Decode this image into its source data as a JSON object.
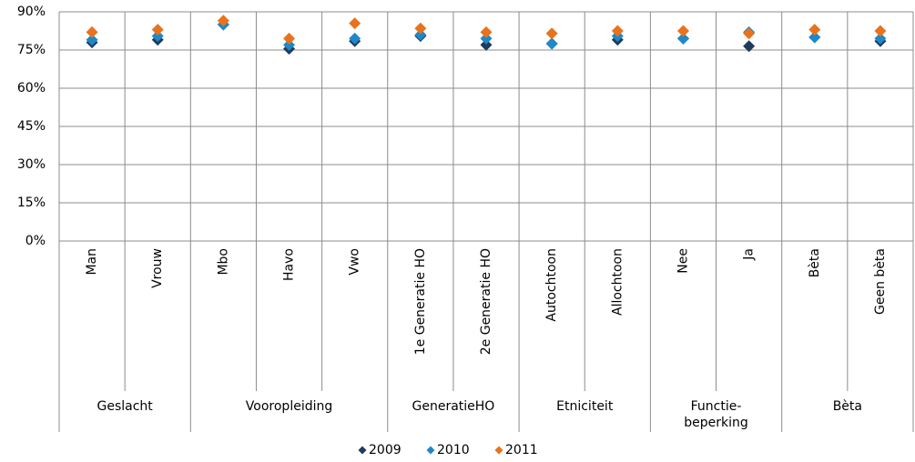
{
  "chart_data": {
    "type": "scatter",
    "groups": [
      {
        "name": "Geslacht",
        "categories": [
          "Man",
          "Vrouw"
        ]
      },
      {
        "name": "Vooropleiding",
        "categories": [
          "Mbo",
          "Havo",
          "Vwo"
        ]
      },
      {
        "name": "GeneratieHO",
        "categories": [
          "1e Generatie HO",
          "2e Generatie HO"
        ]
      },
      {
        "name": "Etniciteit",
        "categories": [
          "Autochtoon",
          "Allochtoon"
        ]
      },
      {
        "name": "Functie-\nbeperking",
        "categories": [
          "Nee",
          "Ja"
        ]
      },
      {
        "name": "Bèta",
        "categories": [
          "Bèta",
          "Geen bèta"
        ]
      }
    ],
    "series": [
      {
        "name": "2009",
        "color": "#1f3b5c",
        "values": [
          78,
          79,
          85,
          75.5,
          78.5,
          80.5,
          77,
          77.5,
          79,
          79.5,
          76.5,
          80,
          78.5
        ]
      },
      {
        "name": "2010",
        "color": "#1e88c9",
        "values": [
          79,
          80.5,
          85,
          77,
          79.5,
          81,
          79.5,
          77.5,
          80.5,
          79.5,
          82,
          80,
          79.5
        ]
      },
      {
        "name": "2011",
        "color": "#e8731c",
        "values": [
          82,
          83,
          86.5,
          79.5,
          85.5,
          83.5,
          82,
          81.5,
          82.5,
          82.5,
          81.5,
          83,
          82.5
        ]
      }
    ],
    "ylim": [
      0,
      90
    ],
    "yticks": [
      {
        "value": 0,
        "label": "0%"
      },
      {
        "value": 15,
        "label": "15%"
      },
      {
        "value": 30,
        "label": "30%"
      },
      {
        "value": 45,
        "label": "45%"
      },
      {
        "value": 60,
        "label": "60%"
      },
      {
        "value": 75,
        "label": "75%"
      },
      {
        "value": 90,
        "label": "90%"
      }
    ],
    "grid": true,
    "legend": "bottom"
  }
}
